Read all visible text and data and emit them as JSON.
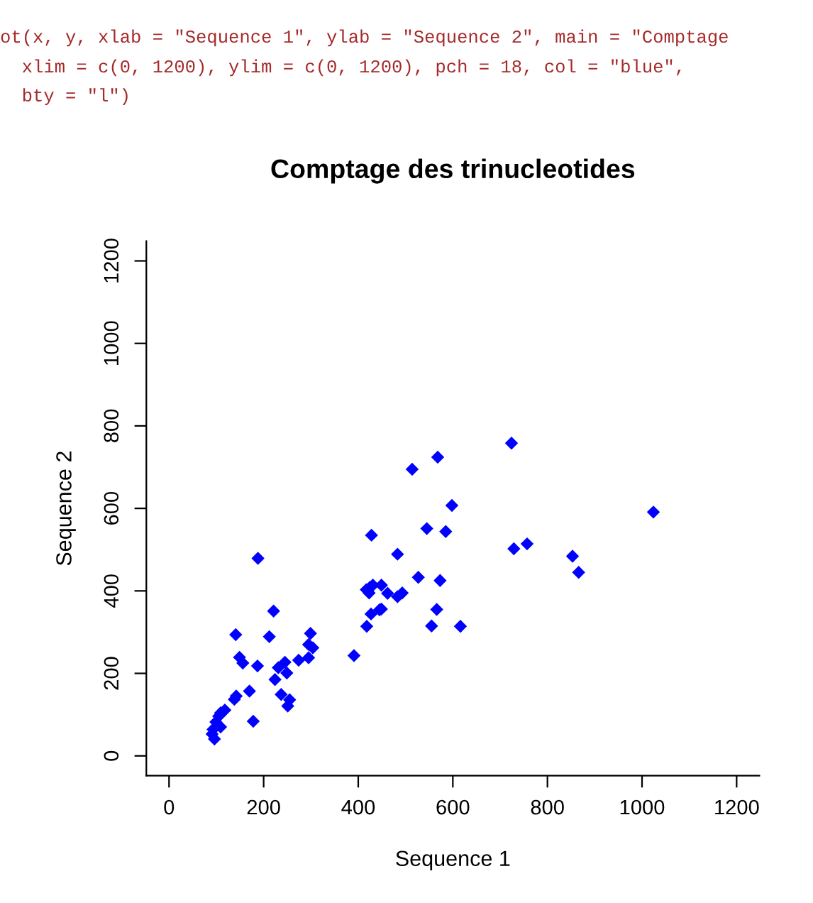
{
  "chart_data": {
    "type": "scatter",
    "title": "Comptage des trinucleotides",
    "xlabel": "Sequence 1",
    "ylabel": "Sequence 2",
    "annotations": [
      "ot(x, y, xlab = \"Sequence 1\", ylab = \"Sequence 2\", main = \"Comptage",
      "  xlim = c(0, 1200), ylim = c(0, 1200), pch = 18, col = \"blue\",",
      "  bty = \"l\")"
    ],
    "series": [
      {
        "color": "#0000ff",
        "x": [
          598,
          428,
          545,
          585,
          483,
          188,
          527,
          573,
          417,
          425,
          431,
          423,
          449,
          462,
          483,
          493,
          221,
          445,
          449,
          566,
          427,
          418,
          555,
          616,
          141,
          212,
          299,
          295,
          304,
          149,
          156,
          187,
          391,
          274,
          295,
          245,
          231,
          249,
          224,
          170,
          142,
          138,
          237,
          255,
          251,
          118,
          109,
          105,
          178,
          99,
          109,
          93,
          91,
          96,
          724,
          568,
          514,
          729,
          757,
          853,
          866,
          1024
        ],
        "values": [
          607,
          535,
          551,
          544,
          489,
          479,
          433,
          425,
          403,
          409,
          414,
          395,
          414,
          394,
          386,
          395,
          351,
          354,
          356,
          355,
          344,
          314,
          315,
          314,
          294,
          289,
          297,
          270,
          262,
          239,
          225,
          218,
          243,
          232,
          238,
          227,
          214,
          201,
          185,
          157,
          145,
          137,
          149,
          136,
          121,
          111,
          104,
          96,
          84,
          82,
          70,
          64,
          53,
          41,
          758,
          724,
          695,
          502,
          514,
          484,
          445,
          591
        ]
      }
    ],
    "xlim": [
      -48,
      1248
    ],
    "ylim": [
      -48,
      1248
    ],
    "xticks": [
      0,
      200,
      400,
      600,
      800,
      1000,
      1200
    ],
    "yticks": [
      0,
      200,
      400,
      600,
      800,
      1000,
      1200
    ],
    "marker": "diamond",
    "grid": false,
    "legend": false
  }
}
